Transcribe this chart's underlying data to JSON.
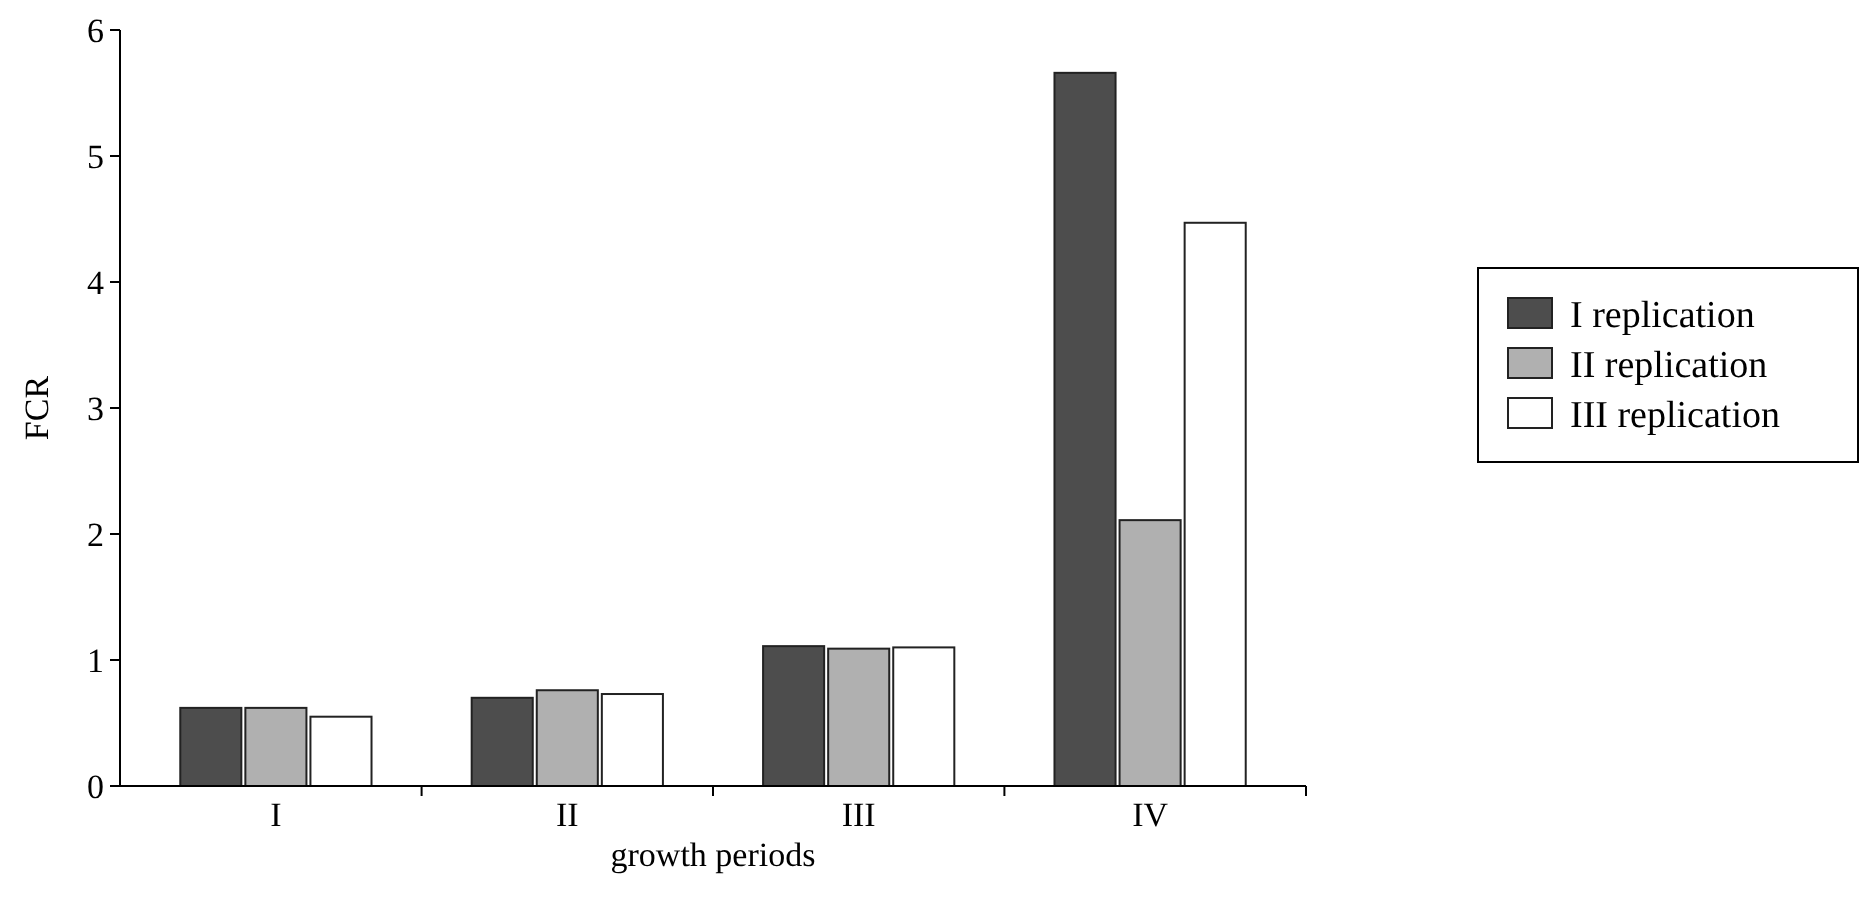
{
  "chart_data": {
    "type": "bar",
    "xlabel": "growth periods",
    "ylabel": "FCR",
    "categories": [
      "I",
      "II",
      "III",
      "IV"
    ],
    "series": [
      {
        "name": "I replication",
        "color": "#4d4d4d",
        "values": [
          0.62,
          0.7,
          1.11,
          5.66
        ]
      },
      {
        "name": "II replication",
        "color": "#b0b0b0",
        "values": [
          0.62,
          0.76,
          1.09,
          2.11
        ]
      },
      {
        "name": "III replication",
        "color": "#ffffff",
        "values": [
          0.55,
          0.73,
          1.1,
          4.47
        ]
      }
    ],
    "ylim": [
      0,
      6
    ],
    "yticks": [
      0,
      1,
      2,
      3,
      4,
      5,
      6
    ],
    "grid": false,
    "legend": "right"
  }
}
